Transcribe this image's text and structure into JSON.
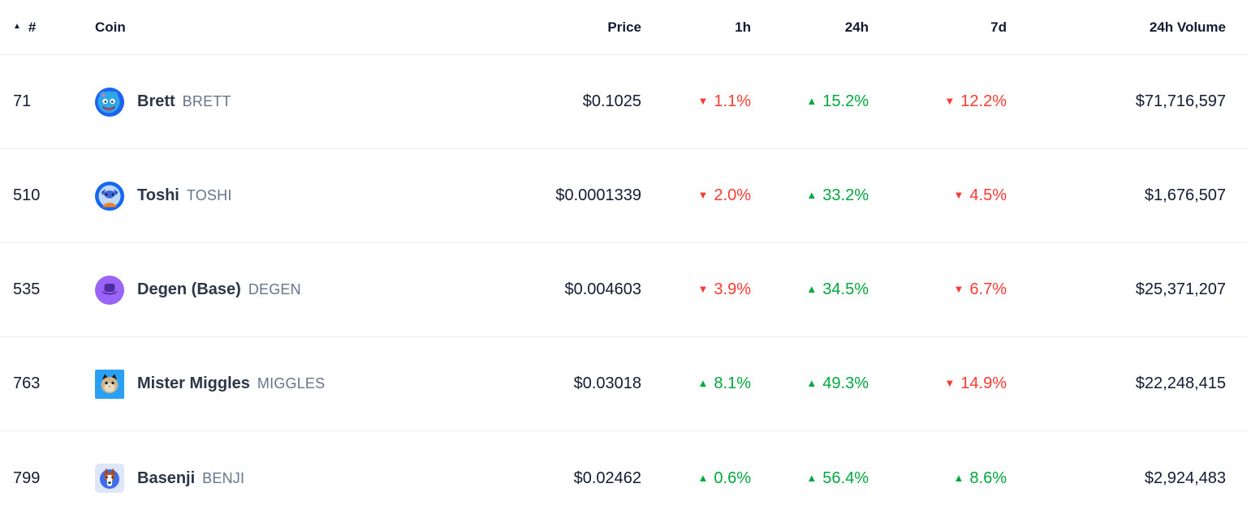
{
  "colors": {
    "positive": "#00a83e",
    "negative": "#ff3a33",
    "text_dark": "#131c33",
    "text_grey": "#66758c",
    "divider": "#eaeef3"
  },
  "icons": {
    "sort_ascending": "▲",
    "change_up": "▲",
    "change_down": "▼"
  },
  "table": {
    "columns": [
      {
        "key": "rank",
        "label": "#"
      },
      {
        "key": "coin",
        "label": "Coin"
      },
      {
        "key": "price",
        "label": "Price"
      },
      {
        "key": "h1",
        "label": "1h"
      },
      {
        "key": "h24",
        "label": "24h"
      },
      {
        "key": "d7",
        "label": "7d"
      },
      {
        "key": "volume",
        "label": "24h Volume"
      }
    ],
    "rows": [
      {
        "rank": "71",
        "name": "Brett",
        "symbol": "BRETT",
        "icon": "brett",
        "price": "$0.1025",
        "h1": {
          "dir": "down",
          "value": "1.1%"
        },
        "h24": {
          "dir": "up",
          "value": "15.2%"
        },
        "d7": {
          "dir": "down",
          "value": "12.2%"
        },
        "volume": "$71,716,597"
      },
      {
        "rank": "510",
        "name": "Toshi",
        "symbol": "TOSHI",
        "icon": "toshi",
        "price": "$0.0001339",
        "h1": {
          "dir": "down",
          "value": "2.0%"
        },
        "h24": {
          "dir": "up",
          "value": "33.2%"
        },
        "d7": {
          "dir": "down",
          "value": "4.5%"
        },
        "volume": "$1,676,507"
      },
      {
        "rank": "535",
        "name": "Degen (Base)",
        "symbol": "DEGEN",
        "icon": "degen",
        "price": "$0.004603",
        "h1": {
          "dir": "down",
          "value": "3.9%"
        },
        "h24": {
          "dir": "up",
          "value": "34.5%"
        },
        "d7": {
          "dir": "down",
          "value": "6.7%"
        },
        "volume": "$25,371,207"
      },
      {
        "rank": "763",
        "name": "Mister Miggles",
        "symbol": "MIGGLES",
        "icon": "miggles",
        "price": "$0.03018",
        "h1": {
          "dir": "up",
          "value": "8.1%"
        },
        "h24": {
          "dir": "up",
          "value": "49.3%"
        },
        "d7": {
          "dir": "down",
          "value": "14.9%"
        },
        "volume": "$22,248,415"
      },
      {
        "rank": "799",
        "name": "Basenji",
        "symbol": "BENJI",
        "icon": "basenji",
        "price": "$0.02462",
        "h1": {
          "dir": "up",
          "value": "0.6%"
        },
        "h24": {
          "dir": "up",
          "value": "56.4%"
        },
        "d7": {
          "dir": "up",
          "value": "8.6%"
        },
        "volume": "$2,924,483"
      }
    ]
  }
}
